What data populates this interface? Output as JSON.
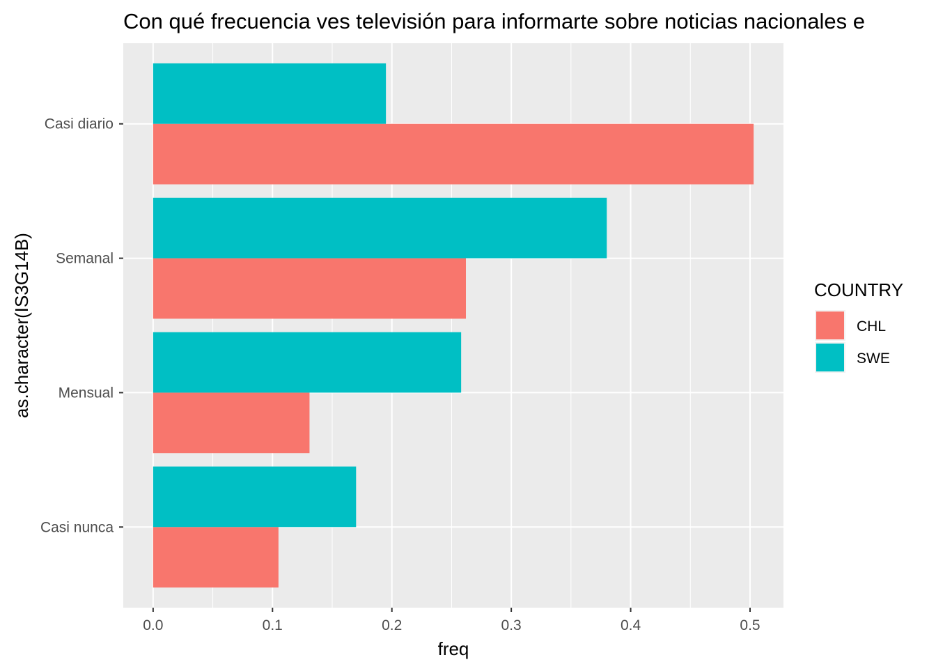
{
  "chart_data": {
    "type": "bar",
    "orientation": "horizontal",
    "title": "Con qué frecuencia ves televisión para informarte sobre noticias nacionales e",
    "xlabel": "freq",
    "ylabel": "as.character(IS3G14B)",
    "categories": [
      "Casi diario",
      "Semanal",
      "Mensual",
      "Casi nunca"
    ],
    "series": [
      {
        "name": "CHL",
        "color": "#F8766D",
        "values": [
          0.503,
          0.262,
          0.131,
          0.105
        ]
      },
      {
        "name": "SWE",
        "color": "#00BFC4",
        "values": [
          0.195,
          0.38,
          0.258,
          0.17
        ]
      }
    ],
    "xlim": [
      -0.025,
      0.528
    ],
    "xticks": [
      0.0,
      0.1,
      0.2,
      0.3,
      0.4,
      0.5
    ],
    "xtick_labels": [
      "0.0",
      "0.1",
      "0.2",
      "0.3",
      "0.4",
      "0.5"
    ],
    "grid": true,
    "legend": {
      "title": "COUNTRY",
      "position": "right",
      "entries": [
        "CHL",
        "SWE"
      ]
    }
  }
}
